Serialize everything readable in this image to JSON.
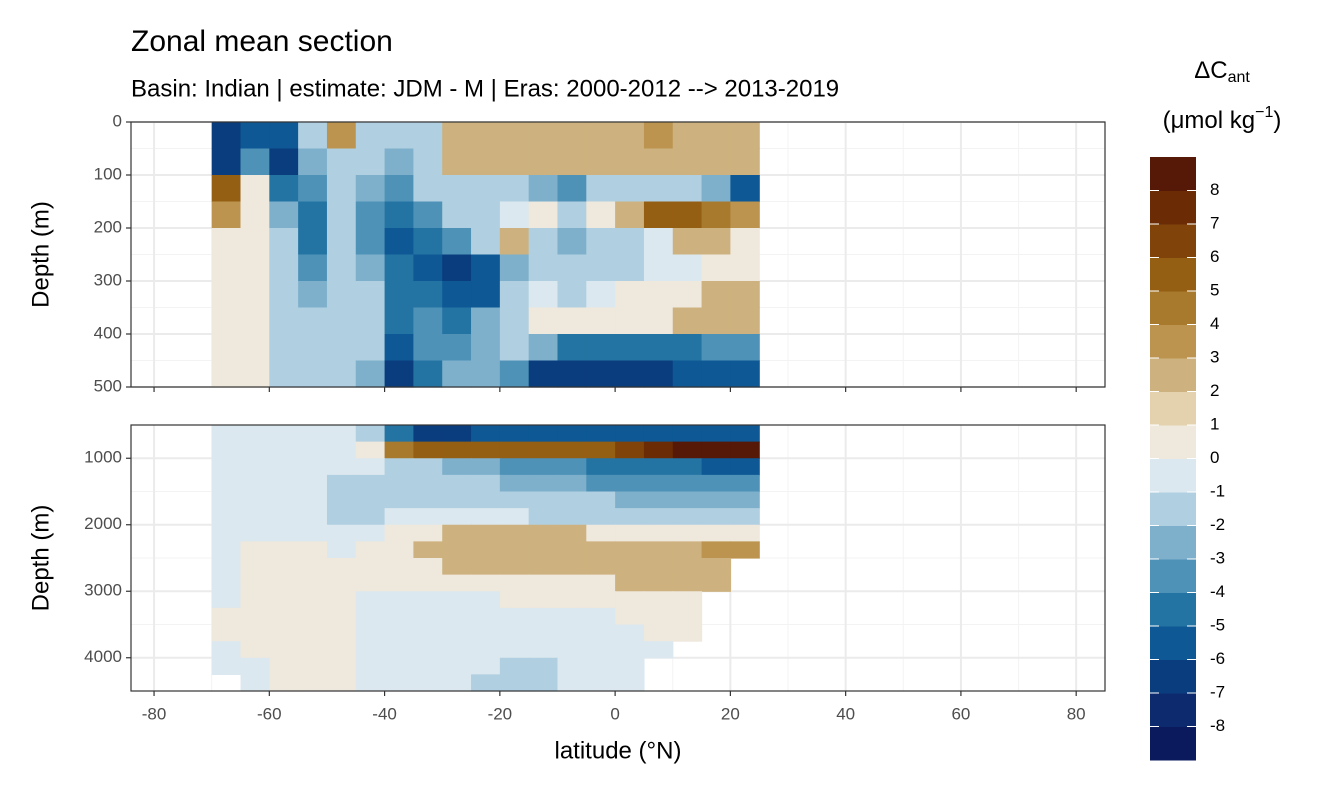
{
  "chart_data": {
    "type": "contour",
    "title": "Zonal mean section",
    "subtitle": "Basin: Indian | estimate: JDM - M | Eras: 2000-2012 --> 2013-2019",
    "xlabel": "latitude (°N)",
    "ylabel": "Depth (m)",
    "xlim": [
      -84,
      85
    ],
    "xticks": [
      -80,
      -60,
      -40,
      -20,
      0,
      20,
      40,
      60,
      80
    ],
    "grid": true,
    "x": [
      -67.5,
      -62.5,
      -57.5,
      -52.5,
      -47.5,
      -42.5,
      -37.5,
      -32.5,
      -27.5,
      -22.5,
      -17.5,
      -12.5,
      -7.5,
      -2.5,
      2.5,
      7.5,
      12.5,
      17.5,
      22.5
    ],
    "panels": [
      {
        "ylim": [
          0,
          500
        ],
        "yticks": [
          0,
          100,
          200,
          300,
          400,
          500
        ],
        "y": [
          25,
          75,
          125,
          175,
          225,
          275,
          325,
          375,
          425,
          475
        ],
        "values": [
          [
            -7,
            -6,
            -6,
            -1.5,
            3,
            -1.5,
            -2,
            -1.5,
            2,
            2,
            2,
            2,
            2,
            2,
            2,
            3,
            2,
            2,
            2
          ],
          [
            -7,
            -4,
            -7,
            -3,
            -1.5,
            -2,
            -3,
            -1.5,
            2,
            2,
            2,
            2,
            2,
            2,
            2,
            2,
            2,
            2,
            2
          ],
          [
            5,
            0.5,
            -5,
            -4,
            -2,
            -3,
            -4,
            -2,
            -1.5,
            -2,
            -1.5,
            -3,
            -4,
            -2,
            -2,
            -1.5,
            -2,
            -3,
            -6
          ],
          [
            3,
            0.5,
            -3,
            -5,
            -2,
            -4,
            -5,
            -4,
            -2,
            -2,
            -0.5,
            0.5,
            -2,
            0.5,
            2,
            5,
            5,
            4,
            3
          ],
          [
            0.5,
            0.5,
            -2,
            -5,
            -2,
            -4,
            -6,
            -5,
            -4,
            -2,
            2,
            -1.5,
            -3,
            -2,
            -1.5,
            -0.5,
            2,
            2,
            0.5
          ],
          [
            0.5,
            0.5,
            -1.5,
            -4,
            -2,
            -3,
            -5,
            -6,
            -7,
            -6,
            -3,
            -1.5,
            -2,
            -2,
            -1.5,
            -0.5,
            -0.5,
            0.5,
            0.5
          ],
          [
            0.5,
            0.5,
            -1.5,
            -3,
            -1.5,
            -2,
            -5,
            -5,
            -6,
            -6,
            -2,
            -0.5,
            -1.5,
            -0.5,
            0.5,
            0.5,
            0.5,
            2,
            2
          ],
          [
            0.5,
            0.5,
            -1.5,
            -2,
            -1.5,
            -2,
            -5,
            -4,
            -5,
            -3,
            -1.5,
            0.5,
            0.5,
            0.5,
            0.5,
            0.5,
            2,
            2,
            2
          ],
          [
            0.5,
            0.5,
            -1.5,
            -2,
            -1.5,
            -2,
            -6,
            -4,
            -4,
            -3,
            -2,
            -3,
            -5,
            -5,
            -5,
            -5,
            -5,
            -4,
            -4
          ],
          [
            0.5,
            0.5,
            -2,
            -1.5,
            -1.5,
            -3,
            -7,
            -5,
            -3,
            -3,
            -4,
            -7,
            -7,
            -7,
            -7,
            -7,
            -6,
            -6,
            -6
          ]
        ]
      },
      {
        "ylim": [
          500,
          4500
        ],
        "yticks": [
          1000,
          2000,
          3000,
          4000
        ],
        "y": [
          625,
          875,
          1125,
          1375,
          1625,
          1875,
          2125,
          2375,
          2625,
          2875,
          3125,
          3375,
          3625,
          3875,
          4125,
          4375
        ],
        "values": [
          [
            -0.5,
            -0.5,
            -0.5,
            -0.5,
            -0.5,
            -1.5,
            -5,
            -7,
            -7,
            -6,
            -6,
            -6,
            -6,
            -6,
            -6,
            -6,
            -6,
            -6,
            -6
          ],
          [
            -0.5,
            -0.5,
            -0.5,
            -0.5,
            -0.5,
            0.5,
            4,
            5,
            5,
            5,
            5,
            5,
            5,
            5,
            6,
            7,
            8,
            8,
            8
          ],
          [
            -0.5,
            -0.5,
            -0.5,
            -0.5,
            -0.5,
            -0.5,
            -1.5,
            -2,
            -3,
            -3,
            -4,
            -4,
            -4,
            -5,
            -5,
            -5,
            -5,
            -6,
            -6
          ],
          [
            -0.5,
            -0.5,
            -0.5,
            -0.5,
            -1.5,
            -1.5,
            -1.5,
            -2,
            -2,
            -2,
            -3,
            -3,
            -3,
            -4,
            -4,
            -4,
            -4,
            -4,
            -4
          ],
          [
            -0.5,
            -0.5,
            -0.5,
            -0.5,
            -1.5,
            -2,
            -1.5,
            -1.5,
            -1.5,
            -1.5,
            -2,
            -2,
            -2,
            -2,
            -3,
            -3,
            -3,
            -3,
            -3
          ],
          [
            -0.5,
            -0.5,
            -0.5,
            -0.5,
            -1.5,
            -1.5,
            -0.5,
            -0.5,
            -0.5,
            -0.5,
            -0.5,
            -1.5,
            -1.5,
            -1.5,
            -1.5,
            -1.5,
            -2,
            -2,
            -2
          ],
          [
            -0.5,
            -0.5,
            -0.5,
            -0.5,
            -0.5,
            -0.5,
            0.5,
            0.5,
            2,
            2,
            2,
            2,
            2,
            0.5,
            0.5,
            0.5,
            0.5,
            0.5,
            0.5
          ],
          [
            -0.5,
            0.5,
            0.5,
            0.5,
            -0.5,
            0.5,
            0.5,
            2,
            2,
            2,
            2,
            2,
            2,
            2,
            2,
            2,
            2,
            3,
            3
          ],
          [
            -0.5,
            0.5,
            0.5,
            0.5,
            0.5,
            0.5,
            0.5,
            0.5,
            2,
            2,
            2,
            2,
            2,
            2,
            2,
            2,
            2,
            2,
            null
          ],
          [
            -0.5,
            0.5,
            0.5,
            0.5,
            0.5,
            0.5,
            0.5,
            0.5,
            0.5,
            0.5,
            0.5,
            0.5,
            0.5,
            0.5,
            2,
            2,
            2,
            2,
            null
          ],
          [
            -0.5,
            0.5,
            0.5,
            0.5,
            0.5,
            -0.5,
            -0.5,
            -0.5,
            -0.5,
            -0.5,
            0.5,
            0.5,
            0.5,
            0.5,
            0.5,
            0.5,
            0.5,
            null,
            null
          ],
          [
            0.5,
            0.5,
            0.5,
            0.5,
            0.5,
            -0.5,
            -0.5,
            -0.5,
            -0.5,
            -0.5,
            -0.5,
            -0.5,
            -0.5,
            -0.5,
            0.5,
            0.5,
            0.5,
            null,
            null
          ],
          [
            0.5,
            0.5,
            0.5,
            0.5,
            0.5,
            -0.5,
            -0.5,
            -0.5,
            -0.5,
            -0.5,
            -0.5,
            -0.5,
            -0.5,
            -0.5,
            -0.5,
            0.5,
            0.5,
            null,
            null
          ],
          [
            -0.5,
            0.5,
            0.5,
            0.5,
            0.5,
            -0.5,
            -0.5,
            -0.5,
            -0.5,
            -0.5,
            -0.5,
            -0.5,
            -0.5,
            -0.5,
            -0.5,
            -0.5,
            null,
            null,
            null
          ],
          [
            -0.5,
            -0.5,
            0.5,
            0.5,
            0.5,
            -0.5,
            -0.5,
            -0.5,
            -0.5,
            -0.5,
            -1.5,
            -1.5,
            -0.5,
            -0.5,
            -0.5,
            null,
            null,
            null,
            null
          ],
          [
            null,
            -0.5,
            0.5,
            0.5,
            0.5,
            -0.5,
            -0.5,
            -0.5,
            -0.5,
            -1.5,
            -1.5,
            -1.5,
            -0.5,
            -0.5,
            -0.5,
            null,
            null,
            null,
            null
          ]
        ]
      }
    ],
    "legend": {
      "title": "ΔC",
      "title_sub": "ant",
      "unit": "(μmol kg",
      "unit_sup": "−1",
      "unit_close": ")",
      "breaks": [
        -9,
        -8,
        -7,
        -6,
        -5,
        -4,
        -3,
        -2,
        -1,
        0,
        1,
        2,
        3,
        4,
        5,
        6,
        7,
        8,
        9
      ],
      "ticks": [
        -8,
        -7,
        -6,
        -5,
        -4,
        -3,
        -2,
        -1,
        0,
        1,
        2,
        3,
        4,
        5,
        6,
        7,
        8
      ],
      "colors": [
        "#0a1a5c",
        "#0d2a6e",
        "#0a3d7e",
        "#0d5895",
        "#2474a3",
        "#4f92b8",
        "#7eb0cc",
        "#b0cfe0",
        "#dce8ef",
        "#efe8dc",
        "#e3d2ad",
        "#cdb27f",
        "#bc9450",
        "#a87a2e",
        "#955f13",
        "#80440a",
        "#6b2c05",
        "#561807"
      ]
    }
  }
}
